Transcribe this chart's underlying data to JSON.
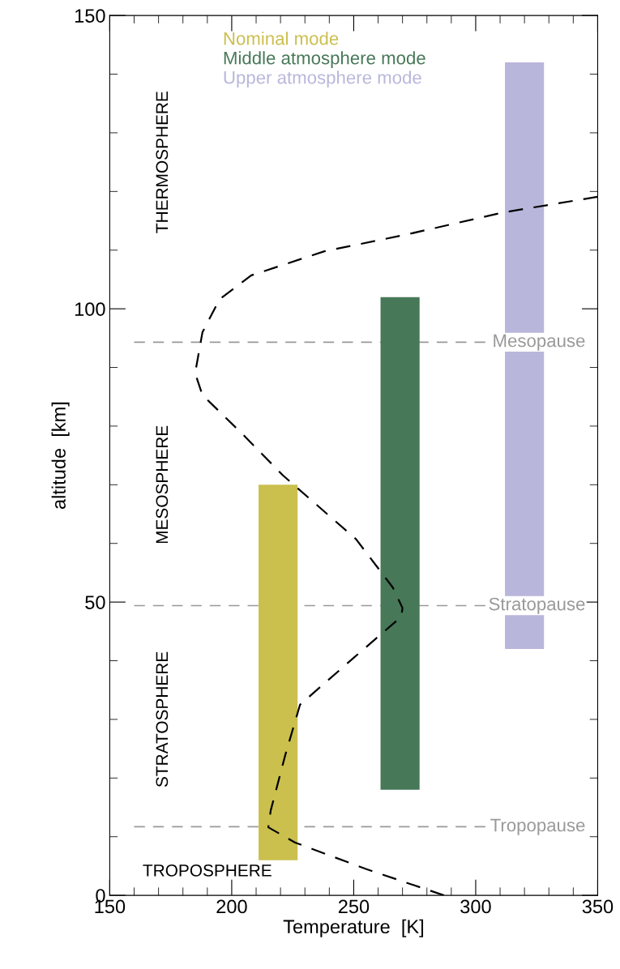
{
  "chart_data": {
    "type": "bar",
    "xlabel": "Temperature  [K]",
    "ylabel": "altitude  [km]",
    "xlim": [
      150,
      350
    ],
    "xticks": [
      150,
      200,
      250,
      300,
      350
    ],
    "ylim": [
      0,
      150
    ],
    "yticks": [
      0,
      50,
      100,
      150
    ],
    "legend": "top",
    "series": [
      {
        "name": "Nominal mode",
        "color": "#cbbf4e",
        "x": [
          219
        ],
        "base": [
          6
        ],
        "values": [
          64
        ]
      },
      {
        "name": "Middle atmosphere mode",
        "color": "#477858",
        "x": [
          269
        ],
        "base": [
          18
        ],
        "values": [
          84
        ]
      },
      {
        "name": "Upper atmosphere mode",
        "color": "#b9b6db",
        "x": [
          320
        ],
        "base": [
          42
        ],
        "values": [
          100
        ]
      },
      {
        "type": "line",
        "color": "#000000",
        "line_style": "dashed",
        "x": [
          287,
          255,
          226,
          215,
          216,
          222,
          228,
          250,
          269.5,
          270,
          266,
          251,
          221,
          205,
          188,
          185,
          188,
          195,
          208,
          238,
          271,
          311,
          350
        ],
        "values": [
          0,
          4.5,
          9,
          11.6,
          14.5,
          24,
          32.5,
          40.5,
          47.5,
          49,
          52.5,
          60.7,
          71.6,
          78.4,
          85.3,
          89,
          96,
          101.6,
          105.7,
          109.8,
          112.6,
          116.4,
          119.1
        ]
      }
    ],
    "ref_lines": [
      {
        "axis": "y",
        "value": 94.3,
        "label": "Mesopause",
        "color": "#999999",
        "line_style": "dashed"
      },
      {
        "axis": "y",
        "value": 49.4,
        "label": "Stratopause",
        "color": "#999999",
        "line_style": "dashed"
      },
      {
        "axis": "y",
        "value": 11.7,
        "label": "Tropopause",
        "color": "#999999",
        "line_style": "dashed"
      }
    ],
    "annotations": [
      "THERMOSPHERE",
      "MESOSPHERE",
      "STRATOSPHERE",
      "TROPOSPHERE"
    ]
  }
}
